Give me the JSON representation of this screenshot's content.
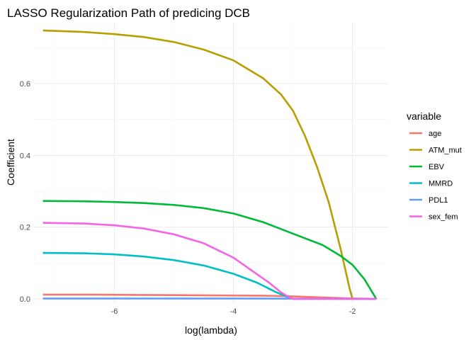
{
  "chart_data": {
    "type": "line",
    "title": "LASSO Regularization Path of predicing DCB",
    "xlabel": "log(lambda)",
    "ylabel": "Coefficient",
    "xlim": [
      -7.35,
      -1.4
    ],
    "ylim": [
      -0.01,
      0.77
    ],
    "x_ticks": [
      -6,
      -4,
      -2
    ],
    "x_tick_labels": [
      "-6",
      "-4",
      "-2"
    ],
    "y_ticks": [
      0.0,
      0.2,
      0.4,
      0.6
    ],
    "y_tick_labels": [
      "0.0",
      "0.2",
      "0.4",
      "0.6"
    ],
    "grid": true,
    "legend": {
      "title": "variable",
      "position": "right"
    },
    "series": [
      {
        "name": "age",
        "color": "#F8766D",
        "x": [
          -7.2,
          -6.5,
          -5.5,
          -4.5,
          -3.5,
          -3.0,
          -2.5,
          -2.0,
          -1.6
        ],
        "y": [
          0.012,
          0.012,
          0.011,
          0.01,
          0.009,
          0.007,
          0.004,
          0.001,
          0.0
        ]
      },
      {
        "name": "ATM_mut",
        "color": "#B79F00",
        "x": [
          -7.2,
          -6.8,
          -6.5,
          -6.0,
          -5.5,
          -5.0,
          -4.5,
          -4.0,
          -3.5,
          -3.2,
          -3.0,
          -2.8,
          -2.6,
          -2.4,
          -2.2,
          -2.05,
          -2.0,
          -1.6
        ],
        "y": [
          0.748,
          0.746,
          0.744,
          0.738,
          0.73,
          0.716,
          0.695,
          0.665,
          0.615,
          0.57,
          0.525,
          0.455,
          0.37,
          0.27,
          0.14,
          0.03,
          0.0,
          0.0
        ]
      },
      {
        "name": "EBV",
        "color": "#00BA38",
        "x": [
          -7.2,
          -6.5,
          -6.0,
          -5.5,
          -5.0,
          -4.5,
          -4.0,
          -3.5,
          -3.0,
          -2.5,
          -2.2,
          -2.0,
          -1.8,
          -1.6
        ],
        "y": [
          0.273,
          0.272,
          0.27,
          0.267,
          0.262,
          0.253,
          0.238,
          0.214,
          0.182,
          0.15,
          0.12,
          0.095,
          0.055,
          0.0
        ]
      },
      {
        "name": "MMRD",
        "color": "#00BFC4",
        "x": [
          -7.2,
          -6.5,
          -6.0,
          -5.5,
          -5.0,
          -4.5,
          -4.0,
          -3.6,
          -3.3,
          -3.1,
          -3.0,
          -1.6
        ],
        "y": [
          0.128,
          0.127,
          0.124,
          0.118,
          0.108,
          0.093,
          0.07,
          0.045,
          0.02,
          0.006,
          0.0,
          0.0
        ]
      },
      {
        "name": "PDL1",
        "color": "#619CFF",
        "x": [
          -7.2,
          -4.0,
          -1.6
        ],
        "y": [
          0.001,
          0.001,
          0.0
        ]
      },
      {
        "name": "sex_fem",
        "color": "#F564E3",
        "x": [
          -7.2,
          -6.5,
          -6.0,
          -5.5,
          -5.0,
          -4.5,
          -4.0,
          -3.7,
          -3.4,
          -3.2,
          -3.05,
          -3.0,
          -1.6
        ],
        "y": [
          0.212,
          0.21,
          0.205,
          0.196,
          0.18,
          0.155,
          0.115,
          0.08,
          0.045,
          0.018,
          0.003,
          0.0,
          0.0
        ]
      }
    ]
  }
}
